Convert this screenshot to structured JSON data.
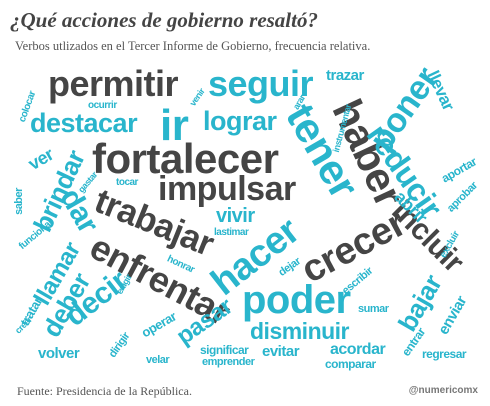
{
  "header": {
    "title": "¿Qué acciones de gobierno resaltó?",
    "subtitle": "Verbos utlizados en el Tercer Informe de Gobierno, frecuencia relativa."
  },
  "footer": {
    "source": "Fuente: Presidencia de la República.",
    "credit": "@numericomx"
  },
  "colors": {
    "teal": "#29b5cc",
    "dark": "#454545"
  },
  "words": [
    {
      "text": "permitir"
    },
    {
      "text": "seguir"
    },
    {
      "text": "ir"
    },
    {
      "text": "destacar"
    },
    {
      "text": "lograr"
    },
    {
      "text": "fortalecer"
    },
    {
      "text": "impulsar"
    },
    {
      "text": "trabajar"
    },
    {
      "text": "tener"
    },
    {
      "text": "haber"
    },
    {
      "text": "poner"
    },
    {
      "text": "reducir"
    },
    {
      "text": "enfrentar"
    },
    {
      "text": "hacer"
    },
    {
      "text": "crecer"
    },
    {
      "text": "incluir"
    },
    {
      "text": "poder"
    },
    {
      "text": "decir"
    },
    {
      "text": "dar"
    },
    {
      "text": "llevar"
    },
    {
      "text": "trazar"
    },
    {
      "text": "brindar"
    },
    {
      "text": "vivir"
    },
    {
      "text": "disminuir"
    },
    {
      "text": "pasar"
    },
    {
      "text": "llamar"
    },
    {
      "text": "deber"
    },
    {
      "text": "bajar"
    },
    {
      "text": "abrir"
    },
    {
      "text": "volver"
    },
    {
      "text": "evitar"
    },
    {
      "text": "acordar"
    },
    {
      "text": "regresar"
    },
    {
      "text": "significar"
    },
    {
      "text": "comparar"
    },
    {
      "text": "emprender"
    },
    {
      "text": "velar"
    },
    {
      "text": "dirigir"
    },
    {
      "text": "operar"
    },
    {
      "text": "tratar"
    },
    {
      "text": "creer"
    },
    {
      "text": "funcionar"
    },
    {
      "text": "saber"
    },
    {
      "text": "ver"
    },
    {
      "text": "colocar"
    },
    {
      "text": "ocurrir"
    },
    {
      "text": "venir"
    },
    {
      "text": "tocar"
    },
    {
      "text": "aportar"
    },
    {
      "text": "aprobar"
    },
    {
      "text": "enviar"
    },
    {
      "text": "entrar"
    },
    {
      "text": "sumar"
    },
    {
      "text": "escribir"
    },
    {
      "text": "dejar"
    },
    {
      "text": "honrar"
    },
    {
      "text": "exigir"
    },
    {
      "text": "lastimar"
    },
    {
      "text": "gastar"
    },
    {
      "text": "instrumentar"
    },
    {
      "text": "excluir"
    },
    {
      "text": "arar"
    }
  ]
}
